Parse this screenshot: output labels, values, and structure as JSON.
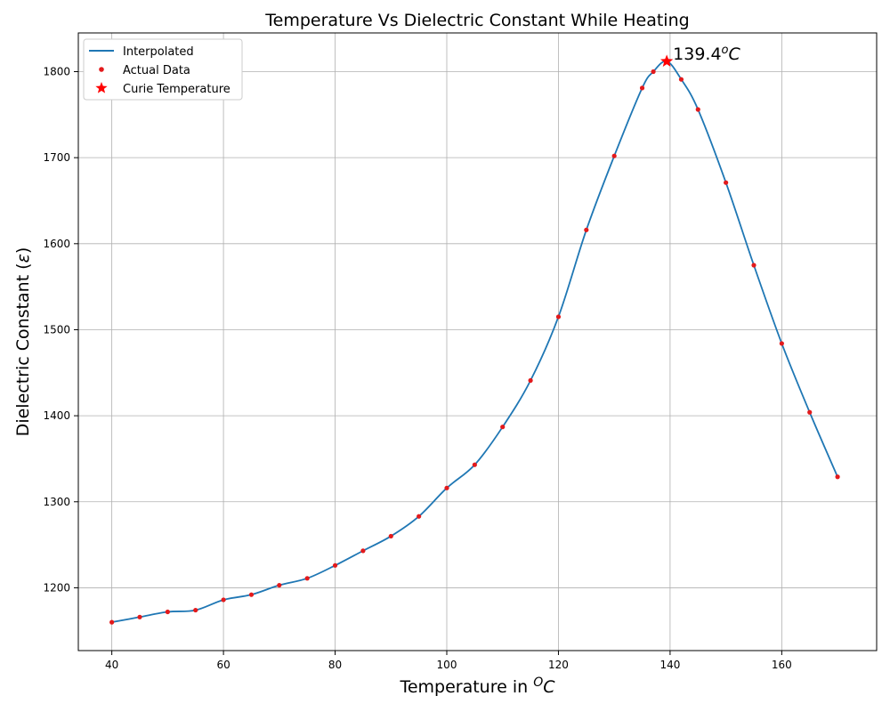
{
  "chart_data": {
    "type": "line",
    "title": "Temperature Vs Dielectric Constant While Heating",
    "xlabel": "Temperature in ",
    "xlabel_sup": "O",
    "xlabel_unit": "C",
    "ylabel": "Dielectric Constant (",
    "ylabel_symbol": "ε",
    "ylabel_close": ")",
    "xlim": [
      34,
      177
    ],
    "ylim": [
      1127,
      1845
    ],
    "x_ticks": [
      40,
      60,
      80,
      100,
      120,
      140,
      160
    ],
    "y_ticks": [
      1200,
      1300,
      1400,
      1500,
      1600,
      1700,
      1800
    ],
    "x_tick_labels": [
      "40",
      "60",
      "80",
      "100",
      "120",
      "140",
      "160"
    ],
    "y_tick_labels": [
      "1200",
      "1300",
      "1400",
      "1500",
      "1600",
      "1700",
      "1800"
    ],
    "grid": true,
    "legend_position": "top-left",
    "series": [
      {
        "name": "Interpolated",
        "kind": "line",
        "color": "#1f77b4",
        "x": [
          40,
          45,
          50,
          55,
          60,
          65,
          70,
          75,
          80,
          85,
          90,
          95,
          100,
          105,
          110,
          115,
          120,
          125,
          130,
          135,
          137,
          139.4,
          142,
          145,
          150,
          155,
          160,
          165,
          170
        ],
        "y": [
          1160,
          1166,
          1172,
          1174,
          1186,
          1192,
          1203,
          1211,
          1226,
          1243,
          1260,
          1283,
          1316,
          1343,
          1387,
          1441,
          1515,
          1616,
          1702,
          1781,
          1800,
          1812,
          1791,
          1756,
          1671,
          1575,
          1484,
          1404,
          1329
        ]
      },
      {
        "name": "Actual Data",
        "kind": "scatter",
        "color": "#e31a1c",
        "x": [
          40,
          45,
          50,
          55,
          60,
          65,
          70,
          75,
          80,
          85,
          90,
          95,
          100,
          105,
          110,
          115,
          120,
          125,
          130,
          135,
          137,
          142,
          145,
          150,
          155,
          160,
          165,
          170
        ],
        "y": [
          1160,
          1166,
          1172,
          1174,
          1186,
          1192,
          1203,
          1211,
          1226,
          1243,
          1260,
          1283,
          1316,
          1343,
          1387,
          1441,
          1515,
          1616,
          1702,
          1781,
          1800,
          1791,
          1756,
          1671,
          1575,
          1484,
          1404,
          1329
        ]
      },
      {
        "name": "Curie Temperature",
        "kind": "marker",
        "marker": "star",
        "color": "#ff0000",
        "x": [
          139.4
        ],
        "y": [
          1812
        ]
      }
    ],
    "annotation": {
      "text": "139.4",
      "sup": "o",
      "unit": "C",
      "x": 139.4,
      "y": 1812
    }
  }
}
